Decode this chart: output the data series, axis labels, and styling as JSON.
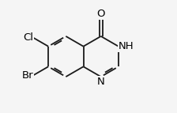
{
  "bg": "#f5f5f5",
  "bond_color": "#1a1a1a",
  "lw": 1.3,
  "double_sep": 0.013,
  "shorten": 0.022,
  "r": 0.155,
  "rcx": 0.595,
  "rcy": 0.5,
  "lcx": 0.326,
  "lcy": 0.5,
  "label_fontsize": 9.5,
  "xlim": [
    0.0,
    1.0
  ],
  "ylim": [
    0.08,
    0.92
  ]
}
